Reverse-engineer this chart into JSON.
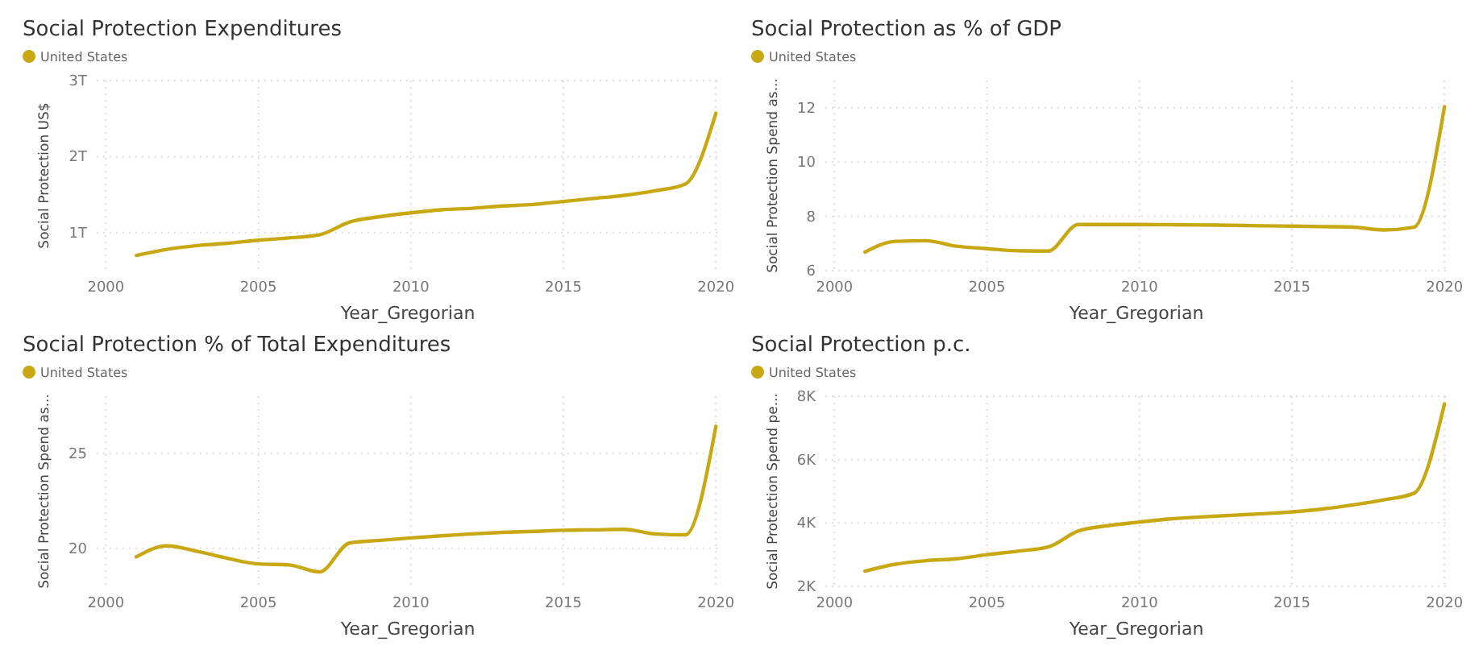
{
  "chart_data": [
    {
      "type": "line",
      "title": "Social Protection Expenditures",
      "xlabel": "Year_Gregorian",
      "ylabel": "Social Protection US$",
      "legend": "top left",
      "grid": true,
      "x": [
        2001,
        2002,
        2003,
        2004,
        2005,
        2006,
        2007,
        2008,
        2009,
        2010,
        2011,
        2012,
        2013,
        2014,
        2015,
        2016,
        2017,
        2018,
        2019,
        2020
      ],
      "series": [
        {
          "name": "United States",
          "color": "#c8a812",
          "values": [
            700000000000,
            780000000000,
            830000000000,
            860000000000,
            900000000000,
            930000000000,
            970000000000,
            1140000000000,
            1210000000000,
            1260000000000,
            1300000000000,
            1320000000000,
            1350000000000,
            1370000000000,
            1410000000000,
            1450000000000,
            1490000000000,
            1550000000000,
            1640000000000,
            2570000000000
          ]
        }
      ],
      "xlim": [
        1999.7,
        2020.1
      ],
      "xticks": [
        2000,
        2005,
        2010,
        2015,
        2020
      ],
      "ylim": [
        500000000000,
        3000000000000
      ],
      "yticks": [
        {
          "value": 1000000000000,
          "label": "1T"
        },
        {
          "value": 2000000000000,
          "label": "2T"
        },
        {
          "value": 3000000000000,
          "label": "3T"
        }
      ]
    },
    {
      "type": "line",
      "title": "Social Protection as % of GDP",
      "xlabel": "Year_Gregorian",
      "ylabel": "Social Protection Spend as...",
      "legend": "top left",
      "grid": true,
      "x": [
        2001,
        2002,
        2003,
        2004,
        2005,
        2006,
        2007,
        2008,
        2009,
        2010,
        2011,
        2012,
        2013,
        2014,
        2015,
        2016,
        2017,
        2018,
        2019,
        2020
      ],
      "series": [
        {
          "name": "United States",
          "color": "#c8a812",
          "values": [
            6.68,
            7.08,
            7.1,
            6.9,
            6.81,
            6.73,
            6.72,
            7.7,
            7.7,
            7.7,
            7.69,
            7.68,
            7.67,
            7.65,
            7.64,
            7.62,
            7.6,
            7.5,
            7.6,
            12.04
          ]
        }
      ],
      "xlim": [
        1999.7,
        2020.1
      ],
      "xticks": [
        2000,
        2005,
        2010,
        2015,
        2020
      ],
      "ylim": [
        6,
        13
      ],
      "yticks": [
        6,
        8,
        10,
        12
      ]
    },
    {
      "type": "line",
      "title": "Social Protection % of Total Expenditures",
      "xlabel": "Year_Gregorian",
      "ylabel": "Social Protection Spend as...",
      "legend": "top left",
      "grid": true,
      "x": [
        2001,
        2002,
        2003,
        2004,
        2005,
        2006,
        2007,
        2008,
        2009,
        2010,
        2011,
        2012,
        2013,
        2014,
        2015,
        2016,
        2017,
        2018,
        2019,
        2020
      ],
      "series": [
        {
          "name": "United States",
          "color": "#c8a812",
          "values": [
            19.55,
            20.13,
            19.84,
            19.47,
            19.18,
            19.13,
            18.76,
            20.29,
            20.42,
            20.55,
            20.66,
            20.76,
            20.84,
            20.89,
            20.95,
            20.97,
            21.0,
            20.76,
            20.71,
            26.42
          ]
        }
      ],
      "xlim": [
        1999.7,
        2020.1
      ],
      "xticks": [
        2000,
        2005,
        2010,
        2015,
        2020
      ],
      "ylim": [
        18,
        28
      ],
      "yticks": [
        20,
        25
      ]
    },
    {
      "type": "line",
      "title": "Social Protection p.c.",
      "xlabel": "Year_Gregorian",
      "ylabel": "Social Protection Spend pe...",
      "legend": "top left",
      "grid": true,
      "x": [
        2001,
        2002,
        2003,
        2004,
        2005,
        2006,
        2007,
        2008,
        2009,
        2010,
        2011,
        2012,
        2013,
        2014,
        2015,
        2016,
        2017,
        2018,
        2019,
        2020
      ],
      "series": [
        {
          "name": "United States",
          "color": "#c8a812",
          "values": [
            2480,
            2700,
            2810,
            2870,
            3000,
            3110,
            3240,
            3750,
            3920,
            4030,
            4130,
            4190,
            4240,
            4290,
            4350,
            4440,
            4570,
            4730,
            4940,
            7760
          ]
        }
      ],
      "xlim": [
        1999.7,
        2020.1
      ],
      "xticks": [
        2000,
        2005,
        2010,
        2015,
        2020
      ],
      "ylim": [
        2000,
        8000
      ],
      "yticks": [
        {
          "value": 2000,
          "label": "2K"
        },
        {
          "value": 4000,
          "label": "4K"
        },
        {
          "value": 6000,
          "label": "6K"
        },
        {
          "value": 8000,
          "label": "8K"
        }
      ]
    }
  ]
}
